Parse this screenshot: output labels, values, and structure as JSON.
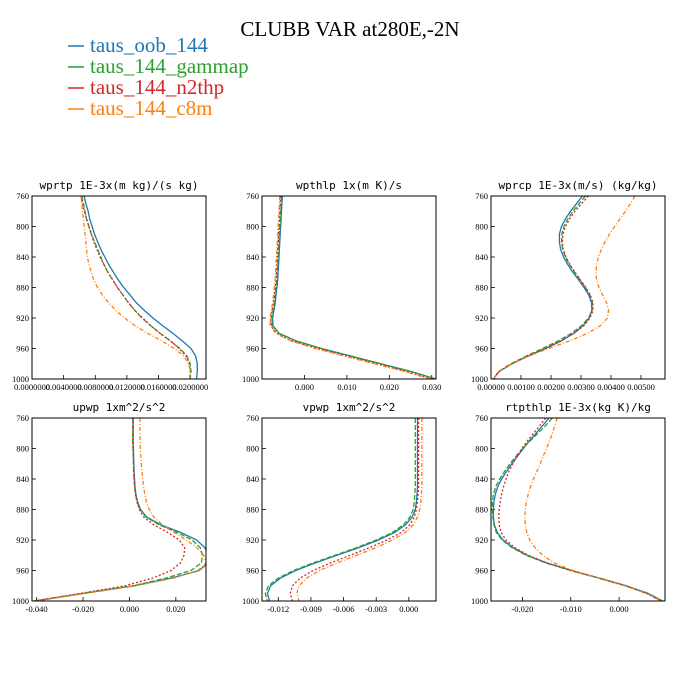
{
  "title": "CLUBB VAR at280E,-2N",
  "chart_data": {
    "type": "line",
    "legend": [
      {
        "name": "taus_oob_144",
        "color": "#1f77b4"
      },
      {
        "name": "taus_144_gammap",
        "color": "#2ca02c"
      },
      {
        "name": "taus_144_n2thp",
        "color": "#d62728"
      },
      {
        "name": "taus_144_c8m",
        "color": "#ff7f0e"
      }
    ],
    "y": [
      760,
      770,
      780,
      790,
      800,
      810,
      820,
      830,
      840,
      850,
      860,
      870,
      880,
      890,
      900,
      910,
      920,
      930,
      940,
      950,
      960,
      970,
      980,
      990,
      1000
    ],
    "ylim": [
      760,
      1000
    ],
    "y_ticks": [
      "760",
      "800",
      "840",
      "880",
      "920",
      "960",
      "1000"
    ],
    "panels": [
      {
        "title": "wprtp  1E-3x(m kg)/(s kg)",
        "xlim": [
          0.0,
          0.022
        ],
        "x_ticks": [
          {
            "v": 0.0,
            "label": "0.0000000"
          },
          {
            "v": 0.004,
            "label": "0.0040000"
          },
          {
            "v": 0.008,
            "label": "0.0080000"
          },
          {
            "v": 0.012,
            "label": "0.0120000"
          },
          {
            "v": 0.016,
            "label": "0.0160000"
          },
          {
            "v": 0.02,
            "label": "0.0200000"
          }
        ],
        "series": [
          {
            "name": "taus_oob_144",
            "values": [
              0.0066,
              0.0068,
              0.0071,
              0.0073,
              0.0076,
              0.0079,
              0.0083,
              0.0087,
              0.0092,
              0.0097,
              0.0103,
              0.0109,
              0.0116,
              0.0124,
              0.0132,
              0.0142,
              0.0153,
              0.0165,
              0.0178,
              0.019,
              0.0201,
              0.0207,
              0.0209,
              0.0209,
              0.0208
            ]
          },
          {
            "name": "taus_144_gammap",
            "values": [
              0.0063,
              0.0065,
              0.0067,
              0.0069,
              0.0072,
              0.0075,
              0.0079,
              0.0083,
              0.0087,
              0.0091,
              0.0096,
              0.0102,
              0.0108,
              0.0115,
              0.0122,
              0.013,
              0.0139,
              0.015,
              0.0162,
              0.0175,
              0.0187,
              0.0196,
              0.02,
              0.0201,
              0.02
            ]
          },
          {
            "name": "taus_144_n2thp",
            "values": [
              0.0062,
              0.0064,
              0.0066,
              0.0069,
              0.0072,
              0.0075,
              0.0078,
              0.0082,
              0.0086,
              0.0091,
              0.0096,
              0.0102,
              0.0108,
              0.0115,
              0.0122,
              0.013,
              0.014,
              0.015,
              0.0162,
              0.0175,
              0.0186,
              0.0195,
              0.0199,
              0.02,
              0.0199
            ]
          },
          {
            "name": "taus_144_c8m",
            "values": [
              0.0062,
              0.0063,
              0.0064,
              0.0065,
              0.0066,
              0.0067,
              0.0068,
              0.0069,
              0.007,
              0.0072,
              0.0075,
              0.0078,
              0.0083,
              0.0089,
              0.0097,
              0.0106,
              0.0117,
              0.013,
              0.0146,
              0.0164,
              0.018,
              0.0192,
              0.0198,
              0.02,
              0.0199
            ]
          }
        ]
      },
      {
        "title": "wpthlp  1x(m K)/s",
        "xlim": [
          -0.01,
          0.031
        ],
        "x_ticks": [
          {
            "v": 0.0,
            "label": "0.000"
          },
          {
            "v": 0.01,
            "label": "0.010"
          },
          {
            "v": 0.02,
            "label": "0.020"
          },
          {
            "v": 0.03,
            "label": "0.030"
          }
        ],
        "series": [
          {
            "name": "taus_oob_144",
            "values": [
              -0.0052,
              -0.0053,
              -0.0054,
              -0.0055,
              -0.0056,
              -0.0057,
              -0.0058,
              -0.0059,
              -0.006,
              -0.0061,
              -0.0062,
              -0.0063,
              -0.0065,
              -0.0067,
              -0.0069,
              -0.0072,
              -0.0075,
              -0.0074,
              -0.006,
              -0.002,
              0.004,
              0.011,
              0.018,
              0.025,
              0.031
            ]
          },
          {
            "name": "taus_144_gammap",
            "values": [
              -0.0054,
              -0.0055,
              -0.0056,
              -0.0057,
              -0.0058,
              -0.0059,
              -0.006,
              -0.0061,
              -0.0062,
              -0.0063,
              -0.0064,
              -0.0065,
              -0.0067,
              -0.0069,
              -0.0071,
              -0.0074,
              -0.0077,
              -0.0076,
              -0.006,
              -0.002,
              0.004,
              0.011,
              0.018,
              0.025,
              0.031
            ]
          },
          {
            "name": "taus_144_n2thp",
            "values": [
              -0.0056,
              -0.0057,
              -0.0058,
              -0.0059,
              -0.006,
              -0.0061,
              -0.0062,
              -0.0063,
              -0.0064,
              -0.0065,
              -0.0066,
              -0.0067,
              -0.0069,
              -0.0071,
              -0.0073,
              -0.0076,
              -0.0079,
              -0.0079,
              -0.0066,
              -0.003,
              0.003,
              0.01,
              0.017,
              0.024,
              0.03
            ]
          },
          {
            "name": "taus_144_c8m",
            "values": [
              -0.0058,
              -0.0059,
              -0.006,
              -0.0061,
              -0.0062,
              -0.0063,
              -0.0064,
              -0.0065,
              -0.0066,
              -0.0067,
              -0.0068,
              -0.0069,
              -0.0071,
              -0.0073,
              -0.0075,
              -0.0078,
              -0.0081,
              -0.0081,
              -0.0068,
              -0.0032,
              0.0025,
              0.0095,
              0.0165,
              0.0235,
              0.0295
            ]
          }
        ]
      },
      {
        "title": "wprcp  1E-3x(m/s) (kg/kg)",
        "xlim": [
          0.0,
          0.0058
        ],
        "x_ticks": [
          {
            "v": 0.0,
            "label": "0.00000"
          },
          {
            "v": 0.001,
            "label": "0.00100"
          },
          {
            "v": 0.002,
            "label": "0.00200"
          },
          {
            "v": 0.003,
            "label": "0.00300"
          },
          {
            "v": 0.004,
            "label": "0.00400"
          },
          {
            "v": 0.005,
            "label": "0.00500"
          }
        ],
        "series": [
          {
            "name": "taus_oob_144",
            "values": [
              0.00305,
              0.00285,
              0.00265,
              0.00248,
              0.00235,
              0.00228,
              0.00228,
              0.00232,
              0.00242,
              0.00256,
              0.00273,
              0.00292,
              0.0031,
              0.00326,
              0.00335,
              0.00336,
              0.00327,
              0.00307,
              0.00276,
              0.00234,
              0.00182,
              0.00124,
              0.0007,
              0.00028,
              8e-05
            ]
          },
          {
            "name": "taus_144_gammap",
            "values": [
              0.00315,
              0.00294,
              0.00273,
              0.00256,
              0.00243,
              0.00236,
              0.00235,
              0.00239,
              0.00248,
              0.00262,
              0.00279,
              0.00297,
              0.00315,
              0.0033,
              0.00338,
              0.00337,
              0.00325,
              0.00302,
              0.00268,
              0.00224,
              0.00172,
              0.00117,
              0.00066,
              0.00026,
              7e-05
            ]
          },
          {
            "name": "taus_144_n2thp",
            "values": [
              0.00325,
              0.00302,
              0.0028,
              0.00262,
              0.00248,
              0.0024,
              0.00238,
              0.00241,
              0.0025,
              0.00263,
              0.0028,
              0.00298,
              0.00316,
              0.00331,
              0.0034,
              0.0034,
              0.0033,
              0.0031,
              0.00277,
              0.00234,
              0.0018,
              0.00122,
              0.00069,
              0.00027,
              8e-05
            ]
          },
          {
            "name": "taus_144_c8m",
            "values": [
              0.0048,
              0.00465,
              0.00448,
              0.0043,
              0.00412,
              0.00395,
              0.0038,
              0.00368,
              0.00358,
              0.00352,
              0.0035,
              0.00352,
              0.0036,
              0.00372,
              0.00385,
              0.00392,
              0.00388,
              0.00365,
              0.00322,
              0.00262,
              0.00192,
              0.00125,
              0.0007,
              0.00028,
              8e-05
            ]
          }
        ]
      },
      {
        "title": "upwp  1xm^2/s^2",
        "xlim": [
          -0.042,
          0.033
        ],
        "x_ticks": [
          {
            "v": -0.04,
            "label": "-0.040"
          },
          {
            "v": -0.02,
            "label": "-0.020"
          },
          {
            "v": 0.0,
            "label": "0.000"
          },
          {
            "v": 0.02,
            "label": "0.020"
          }
        ],
        "series": [
          {
            "name": "taus_oob_144",
            "values": [
              0.0016,
              0.0016,
              0.0016,
              0.0016,
              0.0017,
              0.0018,
              0.0019,
              0.002,
              0.0022,
              0.0024,
              0.0028,
              0.0035,
              0.0048,
              0.0075,
              0.0135,
              0.022,
              0.029,
              0.0325,
              0.034,
              0.034,
              0.03,
              0.018,
              0.002,
              -0.02,
              -0.041
            ]
          },
          {
            "name": "taus_144_gammap",
            "values": [
              0.0014,
              0.0014,
              0.0014,
              0.0014,
              0.0015,
              0.0016,
              0.0017,
              0.0018,
              0.002,
              0.0022,
              0.0026,
              0.0033,
              0.0046,
              0.0072,
              0.0128,
              0.0205,
              0.027,
              0.0305,
              0.0315,
              0.031,
              0.0265,
              0.0158,
              0.0015,
              -0.02,
              -0.041
            ]
          },
          {
            "name": "taus_144_n2thp",
            "values": [
              0.0015,
              0.0015,
              0.0015,
              0.0015,
              0.0016,
              0.0017,
              0.0018,
              0.0019,
              0.0021,
              0.0023,
              0.0026,
              0.0032,
              0.0042,
              0.0062,
              0.0105,
              0.0165,
              0.0215,
              0.0238,
              0.0235,
              0.022,
              0.018,
              0.01,
              -0.002,
              -0.021,
              -0.041
            ]
          },
          {
            "name": "taus_144_c8m",
            "values": [
              0.0045,
              0.0045,
              0.0045,
              0.0046,
              0.0047,
              0.0049,
              0.0051,
              0.0054,
              0.0057,
              0.0061,
              0.0066,
              0.0073,
              0.0085,
              0.0105,
              0.0142,
              0.0192,
              0.0245,
              0.029,
              0.032,
              0.033,
              0.0295,
              0.019,
              0.0025,
              -0.019,
              -0.04
            ]
          }
        ]
      },
      {
        "title": "vpwp  1xm^2/s^2",
        "xlim": [
          -0.0135,
          0.0025
        ],
        "x_ticks": [
          {
            "v": -0.012,
            "label": "-0.012"
          },
          {
            "v": -0.009,
            "label": "-0.009"
          },
          {
            "v": -0.006,
            "label": "-0.006"
          },
          {
            "v": -0.003,
            "label": "-0.003"
          },
          {
            "v": 0.0,
            "label": "0.000"
          }
        ],
        "series": [
          {
            "name": "taus_oob_144",
            "values": [
              0.0008,
              0.0008,
              0.0008,
              0.0008,
              0.0008,
              0.0008,
              0.0008,
              0.0008,
              0.0008,
              0.0008,
              0.00075,
              0.0007,
              0.0006,
              0.0003,
              -0.0003,
              -0.0013,
              -0.0028,
              -0.0046,
              -0.0066,
              -0.0086,
              -0.0104,
              -0.0118,
              -0.0127,
              -0.013,
              -0.0128
            ]
          },
          {
            "name": "taus_144_gammap",
            "values": [
              0.0006,
              0.0006,
              0.0006,
              0.0006,
              0.0006,
              0.0006,
              0.0006,
              0.0006,
              0.0006,
              0.0006,
              0.00055,
              0.0005,
              0.0004,
              0.0001,
              -0.0005,
              -0.0015,
              -0.003,
              -0.0048,
              -0.0068,
              -0.0088,
              -0.0106,
              -0.012,
              -0.0129,
              -0.0132,
              -0.013
            ]
          },
          {
            "name": "taus_144_n2thp",
            "values": [
              0.0009,
              0.0009,
              0.0009,
              0.0009,
              0.0009,
              0.0009,
              0.0009,
              0.0009,
              0.0009,
              0.0009,
              0.00085,
              0.0008,
              0.0007,
              0.0005,
              0.0001,
              -0.0007,
              -0.002,
              -0.0036,
              -0.0054,
              -0.0072,
              -0.0088,
              -0.01,
              -0.0107,
              -0.0109,
              -0.0107
            ]
          },
          {
            "name": "taus_144_c8m",
            "values": [
              0.0012,
              0.0012,
              0.0012,
              0.0012,
              0.0012,
              0.0012,
              0.0012,
              0.0012,
              0.0012,
              0.0012,
              0.00115,
              0.0011,
              0.001,
              0.0008,
              0.0004,
              -0.0003,
              -0.0015,
              -0.003,
              -0.0048,
              -0.0066,
              -0.0082,
              -0.0094,
              -0.0101,
              -0.0103,
              -0.0101
            ]
          }
        ]
      },
      {
        "title": "rtpthlp  1E-3x(kg K)/kg",
        "xlim": [
          -0.0265,
          0.0095
        ],
        "x_ticks": [
          {
            "v": -0.02,
            "label": "-0.020"
          },
          {
            "v": -0.01,
            "label": "-0.010"
          },
          {
            "v": 0.0,
            "label": "0.000"
          }
        ],
        "series": [
          {
            "name": "taus_oob_144",
            "values": [
              -0.0145,
              -0.0158,
              -0.0172,
              -0.0186,
              -0.0198,
              -0.021,
              -0.0222,
              -0.0233,
              -0.0243,
              -0.0251,
              -0.0256,
              -0.0259,
              -0.026,
              -0.026,
              -0.0258,
              -0.0252,
              -0.024,
              -0.022,
              -0.019,
              -0.015,
              -0.0098,
              -0.004,
              0.0015,
              0.006,
              0.009
            ]
          },
          {
            "name": "taus_144_gammap",
            "values": [
              -0.0138,
              -0.0152,
              -0.0168,
              -0.0184,
              -0.0199,
              -0.0213,
              -0.0226,
              -0.0237,
              -0.0247,
              -0.0255,
              -0.026,
              -0.0262,
              -0.0262,
              -0.0261,
              -0.0259,
              -0.0254,
              -0.0242,
              -0.0222,
              -0.0192,
              -0.0152,
              -0.01,
              -0.0042,
              0.0013,
              0.0058,
              0.0088
            ]
          },
          {
            "name": "taus_144_n2thp",
            "values": [
              -0.0152,
              -0.0164,
              -0.0177,
              -0.019,
              -0.0201,
              -0.0211,
              -0.022,
              -0.0228,
              -0.0234,
              -0.0239,
              -0.0243,
              -0.0246,
              -0.0248,
              -0.0249,
              -0.0248,
              -0.0244,
              -0.0234,
              -0.0216,
              -0.0188,
              -0.015,
              -0.01,
              -0.0043,
              0.0012,
              0.0057,
              0.0087
            ]
          },
          {
            "name": "taus_144_c8m",
            "values": [
              -0.0128,
              -0.0133,
              -0.0138,
              -0.0144,
              -0.015,
              -0.0157,
              -0.0163,
              -0.017,
              -0.0177,
              -0.0183,
              -0.0188,
              -0.0192,
              -0.0194,
              -0.0195,
              -0.0194,
              -0.0191,
              -0.0185,
              -0.0174,
              -0.0158,
              -0.0135,
              -0.0095,
              -0.0042,
              0.0012,
              0.0057,
              0.0087
            ]
          }
        ]
      }
    ]
  }
}
